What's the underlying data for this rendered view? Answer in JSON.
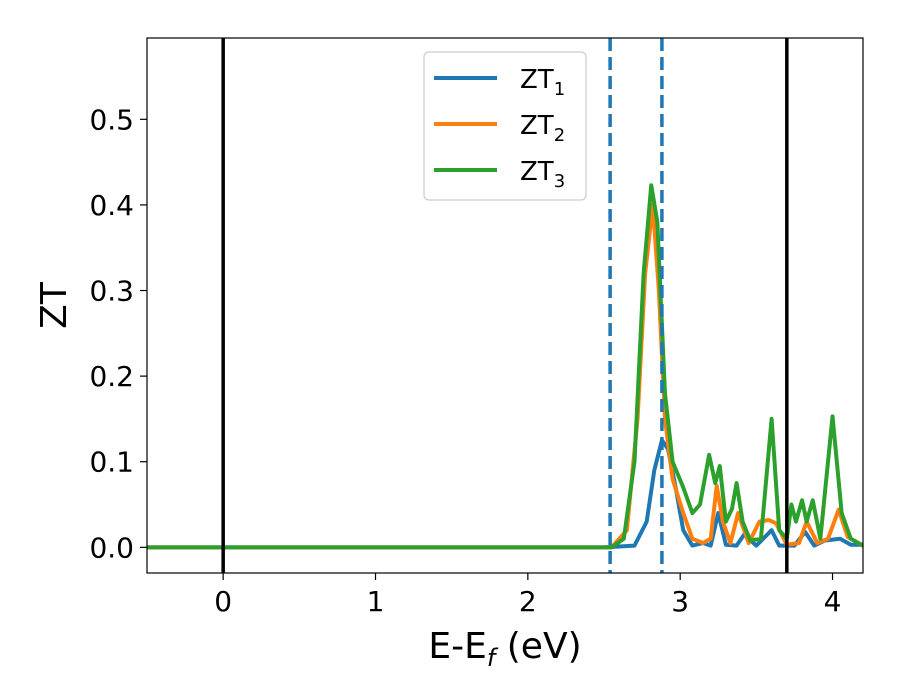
{
  "chart_data": {
    "type": "line",
    "xlabel_main": "E-E",
    "xlabel_sub": "f",
    "xlabel_unit": " (eV)",
    "ylabel": "ZT",
    "xlim": [
      -0.5,
      4.2
    ],
    "ylim": [
      -0.03,
      0.595
    ],
    "xticks": [
      0,
      1,
      2,
      3,
      4
    ],
    "yticks": [
      0.0,
      0.1,
      0.2,
      0.3,
      0.4,
      0.5
    ],
    "xtick_labels": [
      "0",
      "1",
      "2",
      "3",
      "4"
    ],
    "ytick_labels": [
      "0.0",
      "0.1",
      "0.2",
      "0.3",
      "0.4",
      "0.5"
    ],
    "grid": false,
    "legend_position": "top-center",
    "vertical_lines": [
      {
        "x": 0.0,
        "style": "solid",
        "color": "#000000"
      },
      {
        "x": 3.7,
        "style": "solid",
        "color": "#000000"
      },
      {
        "x": 2.54,
        "style": "dashed",
        "color": "#1f77b4"
      },
      {
        "x": 2.88,
        "style": "dashed",
        "color": "#1f77b4"
      }
    ],
    "series": [
      {
        "name_main": "ZT",
        "name_sub": "1",
        "color": "#1f77b4",
        "points": [
          [
            -0.5,
            0
          ],
          [
            2.5,
            0
          ],
          [
            2.7,
            0.002
          ],
          [
            2.78,
            0.03
          ],
          [
            2.83,
            0.09
          ],
          [
            2.88,
            0.125
          ],
          [
            2.92,
            0.115
          ],
          [
            2.97,
            0.07
          ],
          [
            3.02,
            0.02
          ],
          [
            3.08,
            0.002
          ],
          [
            3.15,
            0.005
          ],
          [
            3.2,
            0.002
          ],
          [
            3.25,
            0.04
          ],
          [
            3.3,
            0.003
          ],
          [
            3.37,
            0.002
          ],
          [
            3.42,
            0.015
          ],
          [
            3.5,
            0.002
          ],
          [
            3.6,
            0.02
          ],
          [
            3.65,
            0.002
          ],
          [
            3.75,
            0.002
          ],
          [
            3.82,
            0.018
          ],
          [
            3.88,
            0.002
          ],
          [
            3.95,
            0.008
          ],
          [
            4.05,
            0.01
          ],
          [
            4.12,
            0.003
          ],
          [
            4.2,
            0.003
          ]
        ]
      },
      {
        "name_main": "ZT",
        "name_sub": "2",
        "color": "#ff7f0e",
        "points": [
          [
            -0.5,
            0
          ],
          [
            2.55,
            0
          ],
          [
            2.65,
            0.02
          ],
          [
            2.72,
            0.15
          ],
          [
            2.77,
            0.32
          ],
          [
            2.82,
            0.4
          ],
          [
            2.86,
            0.3
          ],
          [
            2.9,
            0.15
          ],
          [
            2.95,
            0.08
          ],
          [
            3.02,
            0.04
          ],
          [
            3.08,
            0.01
          ],
          [
            3.15,
            0.005
          ],
          [
            3.2,
            0.01
          ],
          [
            3.24,
            0.072
          ],
          [
            3.28,
            0.03
          ],
          [
            3.33,
            0.005
          ],
          [
            3.38,
            0.04
          ],
          [
            3.45,
            0.005
          ],
          [
            3.52,
            0.03
          ],
          [
            3.58,
            0.032
          ],
          [
            3.63,
            0.028
          ],
          [
            3.7,
            0.003
          ],
          [
            3.78,
            0.005
          ],
          [
            3.83,
            0.03
          ],
          [
            3.9,
            0.005
          ],
          [
            3.97,
            0.01
          ],
          [
            4.04,
            0.044
          ],
          [
            4.1,
            0.012
          ],
          [
            4.2,
            0.002
          ]
        ]
      },
      {
        "name_main": "ZT",
        "name_sub": "3",
        "color": "#2ca02c",
        "points": [
          [
            -0.5,
            0
          ],
          [
            2.55,
            0
          ],
          [
            2.63,
            0.01
          ],
          [
            2.7,
            0.1
          ],
          [
            2.76,
            0.32
          ],
          [
            2.81,
            0.423
          ],
          [
            2.85,
            0.38
          ],
          [
            2.9,
            0.18
          ],
          [
            2.95,
            0.1
          ],
          [
            3.02,
            0.07
          ],
          [
            3.08,
            0.04
          ],
          [
            3.13,
            0.05
          ],
          [
            3.19,
            0.108
          ],
          [
            3.23,
            0.075
          ],
          [
            3.26,
            0.095
          ],
          [
            3.3,
            0.03
          ],
          [
            3.34,
            0.045
          ],
          [
            3.37,
            0.075
          ],
          [
            3.41,
            0.03
          ],
          [
            3.46,
            0.008
          ],
          [
            3.53,
            0.01
          ],
          [
            3.6,
            0.15
          ],
          [
            3.65,
            0.02
          ],
          [
            3.7,
            0.01
          ],
          [
            3.73,
            0.05
          ],
          [
            3.76,
            0.03
          ],
          [
            3.8,
            0.055
          ],
          [
            3.83,
            0.03
          ],
          [
            3.87,
            0.055
          ],
          [
            3.92,
            0.01
          ],
          [
            4.0,
            0.153
          ],
          [
            4.06,
            0.04
          ],
          [
            4.12,
            0.01
          ],
          [
            4.2,
            0.002
          ]
        ]
      }
    ]
  }
}
